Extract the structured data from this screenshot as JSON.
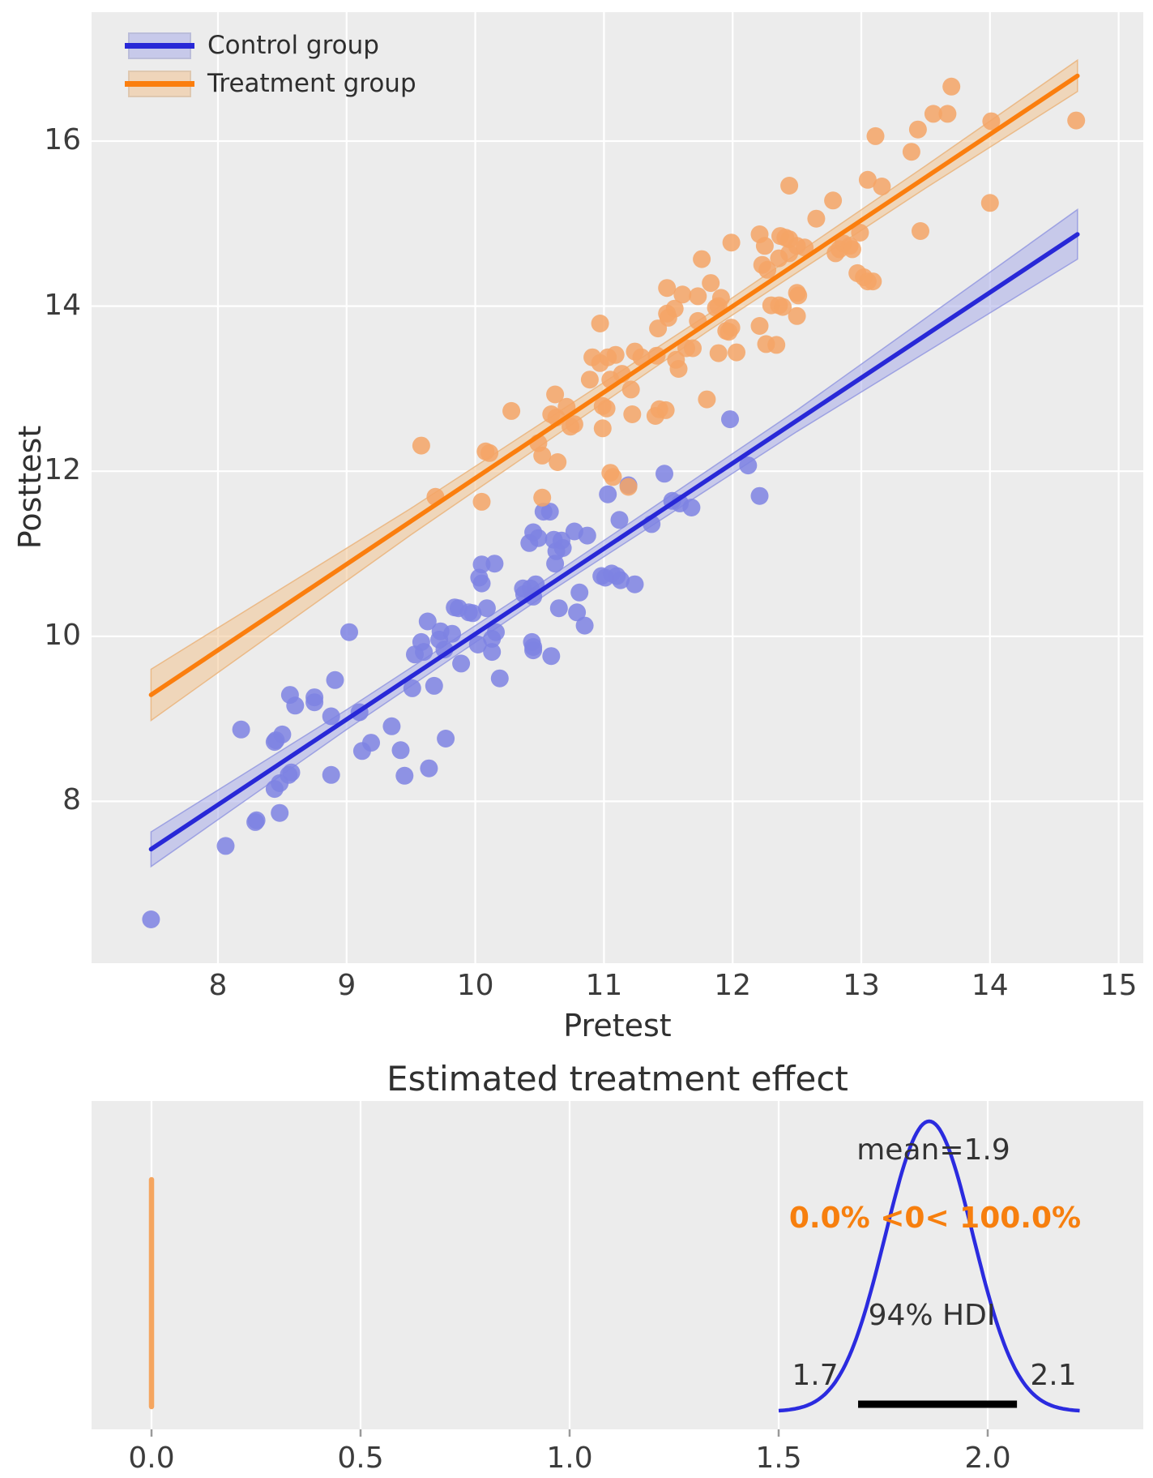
{
  "chart_data": [
    {
      "type": "scatter",
      "title": "",
      "xlabel": "Pretest",
      "ylabel": "Posttest",
      "xlim": [
        7.02,
        15.19
      ],
      "ylim": [
        6.04,
        17.56
      ],
      "xticks": [
        8,
        9,
        10,
        11,
        12,
        13,
        14,
        15
      ],
      "yticks": [
        8,
        10,
        12,
        14,
        16
      ],
      "grid": true,
      "background": "#ececec",
      "grid_color": "#ffffff",
      "legend_position": "upper left",
      "series": [
        {
          "name": "Control group",
          "line_color": "#2828d7",
          "dot_color": "#7e82e3",
          "band_color": "#a9ade9",
          "band_edge": "#8f94e0",
          "line": {
            "x": [
              7.48,
              14.68
            ],
            "y": [
              7.42,
              14.87
            ]
          },
          "band": [
            [
              7.48,
              7.21,
              7.63
            ],
            [
              9.0,
              8.87,
              9.11
            ],
            [
              10.6,
              10.56,
              10.74
            ],
            [
              12.5,
              12.48,
              12.74
            ],
            [
              14.68,
              14.57,
              15.17
            ]
          ],
          "points": [
            [
              7.48,
              6.57
            ],
            [
              8.06,
              7.46
            ],
            [
              8.29,
              7.75
            ],
            [
              8.3,
              7.77
            ],
            [
              8.48,
              7.86
            ],
            [
              8.18,
              8.87
            ],
            [
              8.44,
              8.15
            ],
            [
              8.48,
              8.22
            ],
            [
              8.55,
              8.32
            ],
            [
              8.57,
              8.35
            ],
            [
              8.44,
              8.72
            ],
            [
              8.45,
              8.74
            ],
            [
              8.5,
              8.81
            ],
            [
              8.88,
              8.32
            ],
            [
              8.88,
              9.03
            ],
            [
              8.56,
              9.29
            ],
            [
              8.75,
              9.2
            ],
            [
              8.91,
              9.47
            ],
            [
              8.75,
              9.26
            ],
            [
              8.6,
              9.16
            ],
            [
              9.1,
              9.08
            ],
            [
              9.12,
              8.61
            ],
            [
              9.19,
              8.71
            ],
            [
              9.35,
              8.91
            ],
            [
              9.42,
              8.62
            ],
            [
              9.45,
              8.31
            ],
            [
              9.64,
              8.4
            ],
            [
              9.77,
              8.76
            ],
            [
              9.02,
              10.05
            ],
            [
              9.63,
              10.18
            ],
            [
              9.58,
              9.93
            ],
            [
              9.53,
              9.78
            ],
            [
              9.6,
              9.81
            ],
            [
              9.72,
              9.96
            ],
            [
              9.73,
              10.06
            ],
            [
              9.84,
              10.35
            ],
            [
              9.82,
              10.03
            ],
            [
              9.76,
              9.84
            ],
            [
              9.68,
              9.4
            ],
            [
              9.51,
              9.37
            ],
            [
              9.89,
              9.67
            ],
            [
              10.13,
              9.81
            ],
            [
              10.19,
              9.49
            ],
            [
              10.44,
              9.93
            ],
            [
              10.45,
              9.83
            ],
            [
              10.59,
              9.76
            ],
            [
              10.05,
              10.87
            ],
            [
              10.15,
              10.88
            ],
            [
              10.03,
              10.71
            ],
            [
              10.05,
              10.64
            ],
            [
              9.87,
              10.34
            ],
            [
              9.95,
              10.29
            ],
            [
              9.98,
              10.28
            ],
            [
              10.09,
              10.34
            ],
            [
              10.37,
              10.58
            ],
            [
              10.43,
              10.58
            ],
            [
              10.47,
              10.63
            ],
            [
              10.38,
              10.51
            ],
            [
              10.45,
              10.48
            ],
            [
              10.16,
              10.05
            ],
            [
              10.02,
              9.9
            ],
            [
              10.13,
              9.97
            ],
            [
              10.45,
              9.87
            ],
            [
              10.98,
              10.73
            ],
            [
              11.01,
              10.71
            ],
            [
              11.06,
              10.76
            ],
            [
              11.1,
              10.73
            ],
            [
              11.13,
              10.68
            ],
            [
              11.24,
              10.63
            ],
            [
              10.81,
              10.53
            ],
            [
              10.65,
              10.34
            ],
            [
              10.79,
              10.29
            ],
            [
              10.85,
              10.13
            ],
            [
              10.53,
              11.51
            ],
            [
              10.58,
              11.51
            ],
            [
              10.61,
              11.17
            ],
            [
              10.67,
              11.16
            ],
            [
              10.68,
              11.07
            ],
            [
              10.63,
              11.03
            ],
            [
              10.62,
              10.88
            ],
            [
              10.42,
              11.13
            ],
            [
              10.45,
              11.26
            ],
            [
              10.49,
              11.19
            ],
            [
              10.77,
              11.27
            ],
            [
              10.87,
              11.22
            ],
            [
              11.03,
              11.72
            ],
            [
              11.12,
              11.41
            ],
            [
              11.37,
              11.36
            ],
            [
              11.53,
              11.64
            ],
            [
              11.59,
              11.61
            ],
            [
              11.68,
              11.56
            ],
            [
              11.47,
              11.97
            ],
            [
              11.19,
              11.83
            ],
            [
              11.98,
              12.63
            ],
            [
              12.12,
              12.07
            ],
            [
              12.21,
              11.7
            ]
          ]
        },
        {
          "name": "Treatment group",
          "line_color": "#fb7e0e",
          "dot_color": "#f4a466",
          "band_color": "#f3c492",
          "band_edge": "#eab076",
          "line": {
            "x": [
              7.48,
              14.68
            ],
            "y": [
              9.29,
              16.79
            ]
          },
          "band": [
            [
              7.48,
              8.98,
              9.6
            ],
            [
              9.5,
              11.23,
              11.55
            ],
            [
              11.8,
              13.69,
              13.89
            ],
            [
              13.5,
              15.43,
              15.7
            ],
            [
              14.68,
              16.6,
              16.98
            ]
          ],
          "points": [
            [
              9.58,
              12.31
            ],
            [
              9.69,
              11.69
            ],
            [
              10.05,
              11.63
            ],
            [
              10.52,
              11.68
            ],
            [
              11.05,
              11.98
            ],
            [
              11.07,
              11.93
            ],
            [
              11.19,
              11.81
            ],
            [
              10.08,
              12.24
            ],
            [
              10.11,
              12.22
            ],
            [
              10.28,
              12.73
            ],
            [
              10.49,
              12.34
            ],
            [
              10.52,
              12.19
            ],
            [
              10.64,
              12.11
            ],
            [
              10.59,
              12.69
            ],
            [
              10.63,
              12.65
            ],
            [
              10.62,
              12.93
            ],
            [
              10.71,
              12.78
            ],
            [
              10.77,
              12.57
            ],
            [
              10.74,
              12.54
            ],
            [
              10.99,
              12.79
            ],
            [
              11.02,
              12.76
            ],
            [
              10.99,
              12.52
            ],
            [
              11.22,
              12.69
            ],
            [
              11.4,
              12.67
            ],
            [
              11.43,
              12.75
            ],
            [
              11.48,
              12.74
            ],
            [
              11.8,
              12.87
            ],
            [
              10.89,
              13.11
            ],
            [
              11.05,
              13.11
            ],
            [
              11.14,
              13.18
            ],
            [
              11.21,
              12.99
            ],
            [
              10.91,
              13.38
            ],
            [
              11.03,
              13.38
            ],
            [
              11.09,
              13.41
            ],
            [
              10.97,
              13.31
            ],
            [
              10.97,
              13.79
            ],
            [
              11.24,
              13.45
            ],
            [
              11.29,
              13.38
            ],
            [
              11.41,
              13.4
            ],
            [
              11.56,
              13.35
            ],
            [
              11.58,
              13.24
            ],
            [
              11.64,
              13.49
            ],
            [
              11.69,
              13.49
            ],
            [
              11.89,
              13.43
            ],
            [
              12.03,
              13.44
            ],
            [
              11.42,
              13.73
            ],
            [
              11.5,
              13.86
            ],
            [
              11.73,
              13.82
            ],
            [
              11.95,
              13.7
            ],
            [
              11.97,
              13.69
            ],
            [
              11.99,
              13.74
            ],
            [
              11.87,
              13.98
            ],
            [
              12.21,
              13.76
            ],
            [
              12.26,
              13.54
            ],
            [
              12.34,
              13.53
            ],
            [
              11.55,
              13.97
            ],
            [
              11.49,
              13.91
            ],
            [
              12.3,
              14.01
            ],
            [
              12.36,
              14.01
            ],
            [
              12.39,
              13.99
            ],
            [
              12.51,
              14.13
            ],
            [
              11.49,
              14.22
            ],
            [
              11.61,
              14.14
            ],
            [
              11.73,
              14.12
            ],
            [
              11.76,
              14.57
            ],
            [
              11.83,
              14.28
            ],
            [
              11.91,
              14.1
            ],
            [
              11.89,
              14.0
            ],
            [
              11.99,
              14.77
            ],
            [
              12.21,
              14.87
            ],
            [
              12.25,
              14.73
            ],
            [
              12.23,
              14.5
            ],
            [
              12.27,
              14.44
            ],
            [
              12.37,
              14.85
            ],
            [
              12.41,
              14.83
            ],
            [
              12.44,
              14.81
            ],
            [
              12.36,
              14.58
            ],
            [
              12.44,
              14.64
            ],
            [
              12.44,
              15.46
            ],
            [
              12.5,
              14.73
            ],
            [
              12.56,
              14.71
            ],
            [
              12.8,
              14.64
            ],
            [
              12.83,
              14.69
            ],
            [
              12.86,
              14.76
            ],
            [
              12.91,
              14.73
            ],
            [
              12.93,
              14.69
            ],
            [
              12.97,
              14.4
            ],
            [
              13.02,
              14.35
            ],
            [
              13.05,
              14.3
            ],
            [
              13.09,
              14.3
            ],
            [
              12.5,
              14.16
            ],
            [
              12.5,
              13.88
            ],
            [
              12.99,
              14.89
            ],
            [
              13.05,
              15.53
            ],
            [
              13.16,
              15.45
            ],
            [
              12.78,
              15.28
            ],
            [
              12.65,
              15.06
            ],
            [
              13.11,
              16.06
            ],
            [
              13.44,
              16.14
            ],
            [
              13.56,
              16.33
            ],
            [
              13.67,
              16.33
            ],
            [
              13.7,
              16.66
            ],
            [
              13.39,
              15.87
            ],
            [
              14.01,
              16.24
            ],
            [
              14.67,
              16.25
            ],
            [
              14.0,
              15.25
            ],
            [
              13.46,
              14.91
            ]
          ]
        }
      ]
    },
    {
      "type": "density",
      "title": "Estimated treatment effect",
      "xlabel": "",
      "xlim": [
        -0.143,
        2.372
      ],
      "xticks": [
        "0.0",
        "0.5",
        "1.0",
        "1.5",
        "2.0"
      ],
      "grid": true,
      "background": "#ececec",
      "grid_color": "#ffffff",
      "curve": {
        "color": "#2b2bdf",
        "mean": 1.86,
        "sd": 0.105,
        "x_start": 1.5,
        "x_end": 2.22
      },
      "ref_line": {
        "x": 0.0,
        "color": "#f5a55f"
      },
      "hdi": [
        1.69,
        2.07
      ],
      "hdi_bar_color": "#000000",
      "annotations": {
        "mean_label": "mean=1.9",
        "prob_label": "0.0% <0< 100.0%",
        "prob_color": "#f77f0e",
        "hdi_label": "94% HDI",
        "hdi_low_label": "1.7",
        "hdi_high_label": "2.1"
      }
    }
  ]
}
